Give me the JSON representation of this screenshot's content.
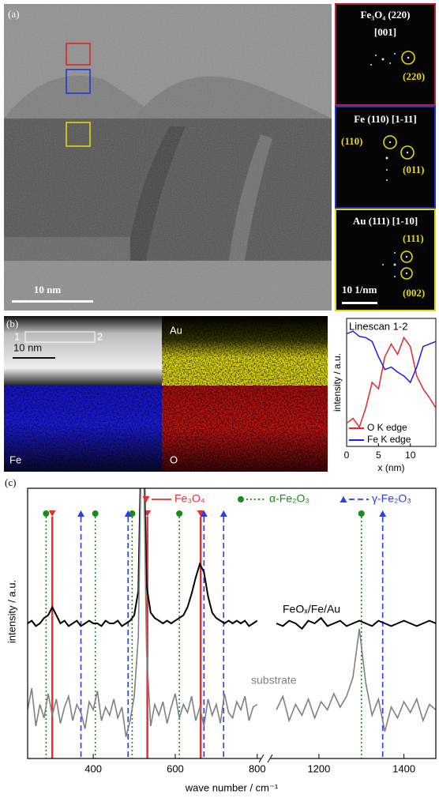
{
  "panel_a": {
    "label": "(a)",
    "scale_bar": "10 nm",
    "fft": [
      {
        "title": "Fe₃O₄ (220)",
        "zone": "[001]",
        "spots": [
          "(220)"
        ]
      },
      {
        "title": "Fe (110) [1-11]",
        "spots": [
          "(110)",
          "(011)"
        ]
      },
      {
        "title": "Au (111) [1-10]",
        "spots": [
          "(111)",
          "(002)"
        ],
        "scale_bar": "10 1/nm"
      }
    ]
  },
  "panel_b": {
    "label": "(b)",
    "start": "1",
    "end": "2",
    "scale_bar": "10 nm",
    "maps": [
      "Au",
      "Fe",
      "O"
    ]
  },
  "panel_c": {
    "label": "(c)"
  },
  "chart_data": [
    {
      "type": "line",
      "title": "Linescan 1-2",
      "y_label": "intensity / a.u.",
      "x_label": "x (nm)",
      "x": [
        0,
        1,
        2,
        3,
        4,
        5,
        6,
        7,
        8,
        9,
        10,
        11,
        12,
        13,
        14
      ],
      "xlim": [
        0,
        14
      ],
      "xticks": [
        0,
        5,
        10
      ],
      "ylim": [
        0,
        1
      ],
      "legend": "lower left",
      "series": [
        {
          "name": "O K edge",
          "color": "#e8262b",
          "values": [
            0.18,
            0.22,
            0.15,
            0.3,
            0.5,
            0.45,
            0.7,
            0.8,
            0.72,
            0.85,
            0.78,
            0.55,
            0.45,
            0.38,
            0.3
          ]
        },
        {
          "name": "Fe K edge",
          "color": "#1c1cf0",
          "values": [
            0.88,
            0.9,
            0.86,
            0.85,
            0.82,
            0.7,
            0.6,
            0.62,
            0.58,
            0.55,
            0.5,
            0.62,
            0.78,
            0.8,
            0.82
          ]
        }
      ]
    },
    {
      "type": "line",
      "y_label": "intensity / a.u.",
      "x_label": "wave number / cm⁻¹",
      "xlim": [
        240,
        1475
      ],
      "xbreak": [
        810,
        1085
      ],
      "xticks": [
        400,
        600,
        800,
        1200,
        1400
      ],
      "ylim": [
        0,
        10
      ],
      "x": [
        240,
        250,
        260,
        270,
        280,
        290,
        300,
        310,
        320,
        330,
        340,
        350,
        360,
        370,
        380,
        390,
        400,
        410,
        420,
        430,
        440,
        450,
        460,
        470,
        480,
        490,
        500,
        510,
        520,
        530,
        540,
        550,
        560,
        570,
        580,
        590,
        600,
        610,
        620,
        630,
        640,
        650,
        660,
        670,
        680,
        690,
        700,
        710,
        720,
        730,
        740,
        750,
        760,
        770,
        780,
        790,
        800,
        950,
        1100,
        1115,
        1130,
        1145,
        1160,
        1175,
        1190,
        1205,
        1220,
        1235,
        1250,
        1265,
        1280,
        1295,
        1310,
        1325,
        1340,
        1355,
        1370,
        1385,
        1400,
        1415,
        1430,
        1445,
        1460,
        1475
      ],
      "series": [
        {
          "name": "FeOₓ/Fe/Au",
          "color": "#000000",
          "values": [
            5.0,
            5.1,
            4.9,
            5.0,
            5.2,
            5.3,
            5.6,
            5.3,
            5.0,
            5.1,
            4.9,
            5.0,
            5.1,
            4.9,
            5.0,
            5.1,
            5.0,
            5.0,
            4.9,
            5.1,
            5.0,
            5.0,
            5.1,
            4.9,
            5.0,
            5.1,
            5.3,
            6.2,
            14,
            6.4,
            5.4,
            5.2,
            5.1,
            5.0,
            5.1,
            5.0,
            5.1,
            5.2,
            5.3,
            5.6,
            6.1,
            6.7,
            7.2,
            6.9,
            6.0,
            5.4,
            5.2,
            5.1,
            5.0,
            5.1,
            5.0,
            5.1,
            5.0,
            5.1,
            4.9,
            5.0,
            5.1,
            null,
            5.0,
            4.9,
            5.1,
            5.0,
            4.8,
            5.1,
            5.0,
            5.2,
            4.9,
            5.0,
            5.1,
            4.9,
            5.0,
            5.1,
            5.0,
            4.9,
            5.1,
            5.0,
            4.9,
            5.0,
            5.1,
            5.0,
            4.9,
            5.0,
            5.1,
            5.0
          ]
        },
        {
          "name": "substrate",
          "color": "#808080",
          "values": [
            1.8,
            2.6,
            1.2,
            2.0,
            1.5,
            2.4,
            1.6,
            2.2,
            1.3,
            1.9,
            2.3,
            1.4,
            2.0,
            1.7,
            1.1,
            2.1,
            1.8,
            2.5,
            1.4,
            1.9,
            1.6,
            2.2,
            1.5,
            1.9,
            0.8,
            1.4,
            2.3,
            4.5,
            14,
            4.0,
            1.2,
            2.0,
            1.6,
            2.1,
            1.3,
            1.9,
            2.4,
            1.5,
            2.0,
            1.7,
            2.3,
            1.4,
            1.9,
            1.2,
            2.2,
            1.6,
            2.0,
            1.3,
            2.4,
            1.7,
            1.5,
            2.1,
            1.8,
            2.3,
            1.4,
            1.9,
            2.0,
            null,
            1.8,
            2.3,
            1.4,
            2.0,
            1.6,
            2.2,
            1.5,
            2.1,
            1.8,
            2.4,
            1.9,
            2.3,
            3.0,
            4.8,
            2.8,
            1.6,
            2.2,
            1.0,
            1.9,
            1.5,
            2.1,
            1.7,
            2.2,
            1.4,
            2.0,
            1.8
          ]
        }
      ],
      "reference_lines": [
        {
          "name": "Fe₃O₄",
          "color": "#e83030",
          "style": "solid",
          "marker": "triangle-down",
          "values": [
            300,
            532,
            662
          ]
        },
        {
          "name": "α-Fe₂O₃",
          "color": "#1a8a1a",
          "style": "dotted",
          "marker": "circle",
          "values": [
            285,
            405,
            495,
            610,
            1300
          ]
        },
        {
          "name": "γ-Fe₂O₃",
          "color": "#2a3cf0",
          "style": "dashed",
          "marker": "triangle-up",
          "values": [
            370,
            485,
            670,
            718,
            1350
          ]
        }
      ]
    }
  ]
}
